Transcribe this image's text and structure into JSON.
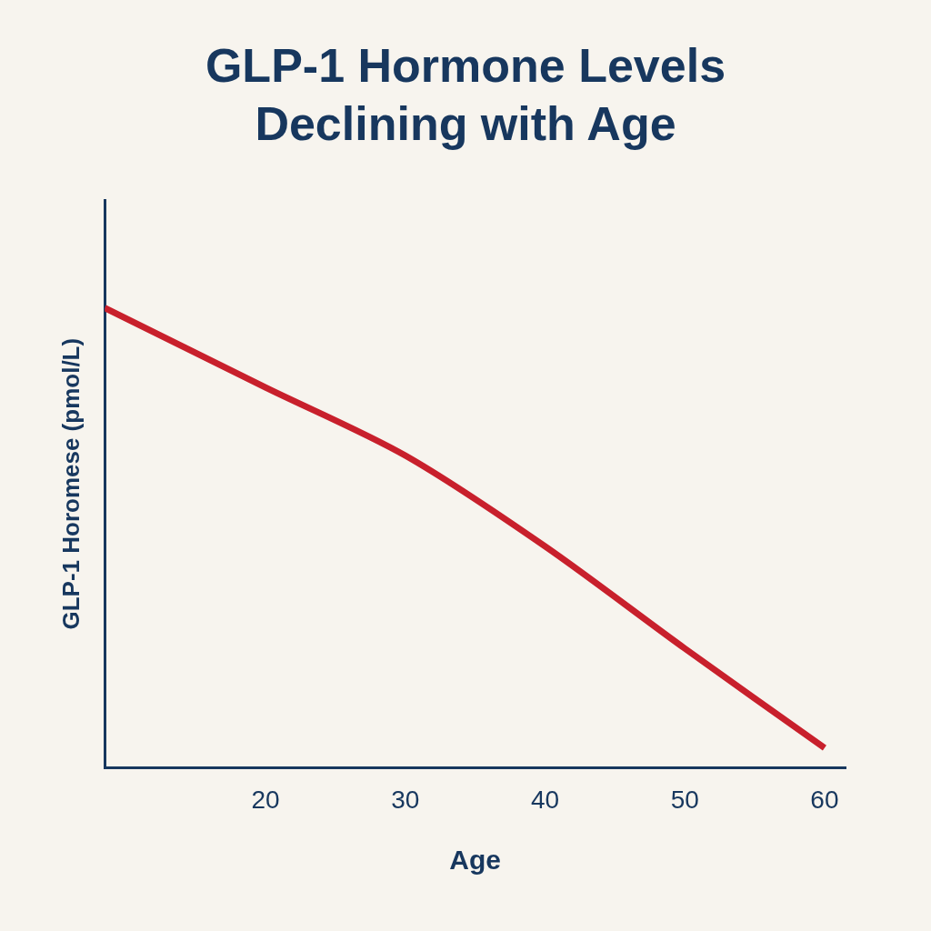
{
  "chart_data": {
    "type": "line",
    "title": "GLP-1 Hormone Levels Declining with Age",
    "x_label": "Age",
    "y_label": "GLP-1 Horomese (pmol/L)",
    "x": [
      8.5,
      20,
      30,
      40,
      50,
      60
    ],
    "values": [
      81,
      67,
      55,
      39,
      21,
      3.5
    ],
    "color": "#c8202c",
    "marker": "none",
    "xlim": [
      8.5,
      61.5
    ],
    "xticks": [
      20,
      30,
      40,
      50,
      60
    ],
    "ylim": [
      0,
      100
    ],
    "grid": false,
    "tick_labels": "x"
  }
}
